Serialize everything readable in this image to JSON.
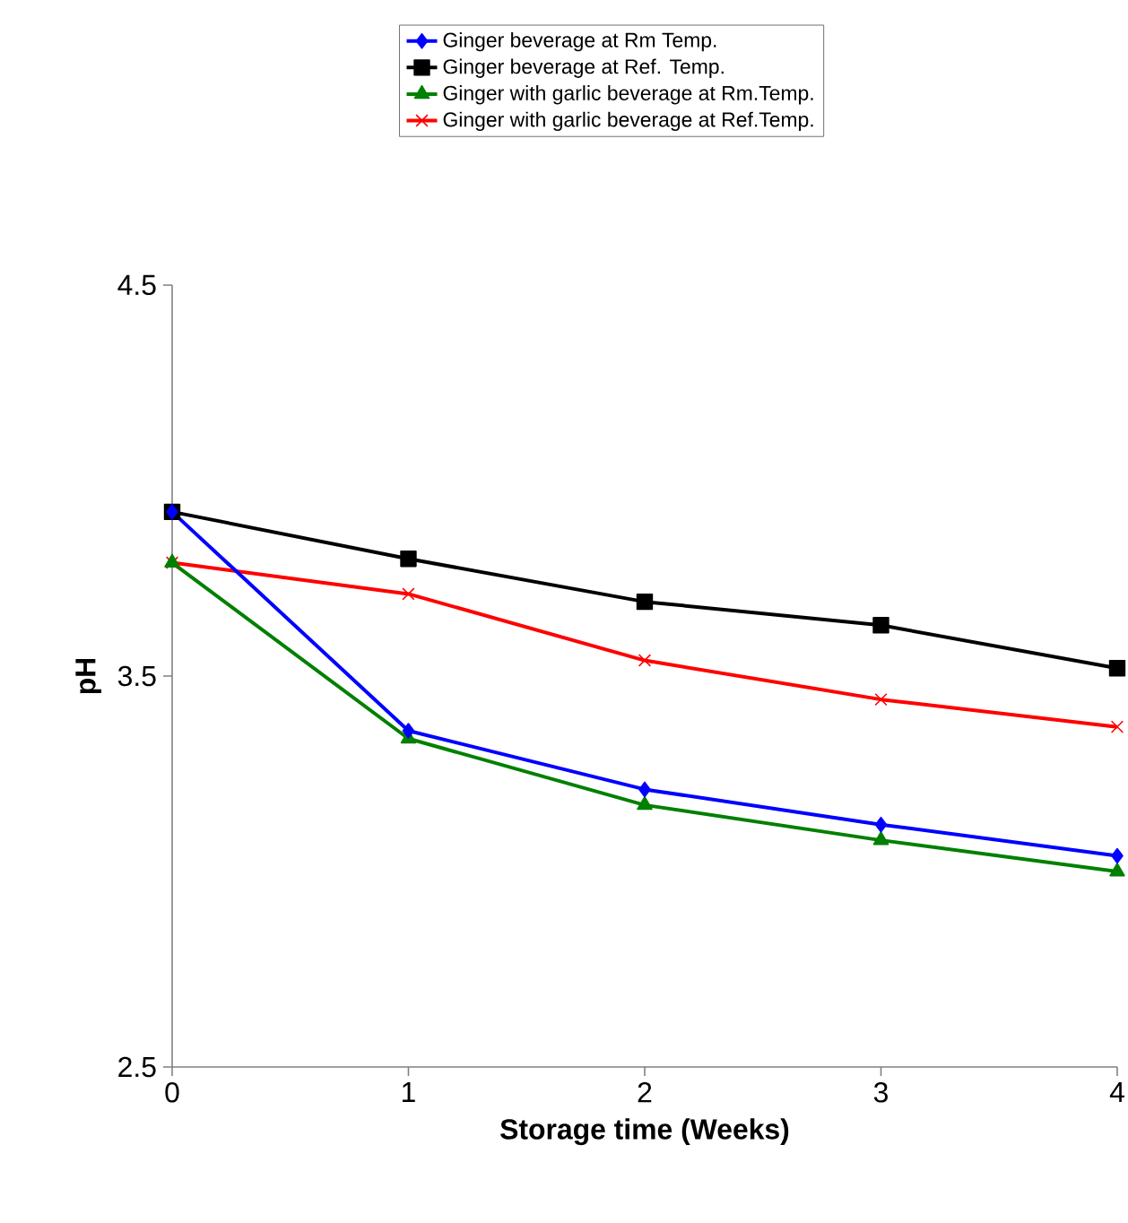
{
  "chart_data": {
    "type": "line",
    "xlabel": "Storage time (Weeks)",
    "ylabel": "pH",
    "x": [
      0,
      1,
      2,
      3,
      4
    ],
    "series": [
      {
        "name": "Ginger beverage at Rm Temp.",
        "color": "#0000ff",
        "marker": "diamond",
        "values": [
          3.92,
          3.36,
          3.21,
          3.12,
          3.04
        ]
      },
      {
        "name": "Ginger beverage at Ref. Temp.",
        "color": "#000000",
        "marker": "square",
        "values": [
          3.92,
          3.8,
          3.69,
          3.63,
          3.52
        ]
      },
      {
        "name": "Ginger with garlic beverage at Rm.Temp.",
        "color": "#008000",
        "marker": "triangle",
        "values": [
          3.79,
          3.34,
          3.17,
          3.08,
          3.0
        ]
      },
      {
        "name": "Ginger with garlic beverage at Ref.Temp.",
        "color": "#ff0000",
        "marker": "cross",
        "values": [
          3.79,
          3.71,
          3.54,
          3.44,
          3.37
        ]
      }
    ],
    "xlim": [
      0,
      4
    ],
    "xticks": [
      0,
      1,
      2,
      3,
      4
    ],
    "ylim": [
      2.5,
      4.5
    ],
    "yticks": [
      2.5,
      3.5,
      4.5
    ],
    "grid": false,
    "legend": "top",
    "line_style": "solid"
  }
}
